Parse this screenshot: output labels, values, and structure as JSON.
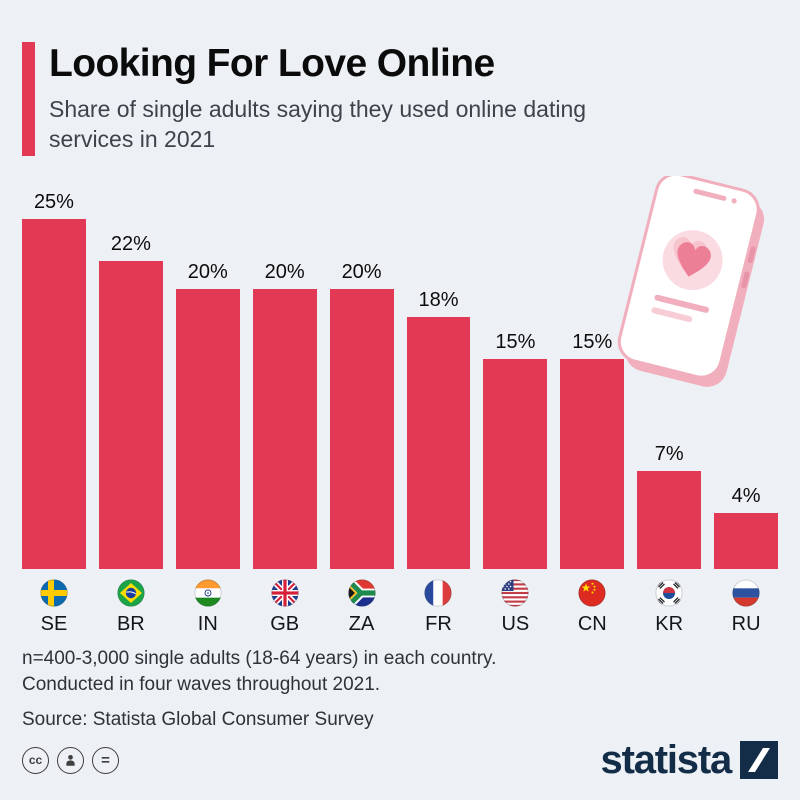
{
  "page": {
    "background": "#edf1f5"
  },
  "header": {
    "title": "Looking For Love Online",
    "subtitle": "Share of single adults saying they used online dating services in 2021",
    "accent_color": "#e23a55"
  },
  "chart_data": {
    "type": "bar",
    "title": "Looking For Love Online",
    "subtitle": "Share of single adults saying they used online dating services in 2021",
    "unit": "%",
    "categories": [
      "SE",
      "BR",
      "IN",
      "GB",
      "ZA",
      "FR",
      "US",
      "CN",
      "KR",
      "RU"
    ],
    "values": [
      25,
      22,
      20,
      20,
      20,
      18,
      15,
      15,
      7,
      4
    ],
    "value_labels": [
      "25%",
      "22%",
      "20%",
      "20%",
      "20%",
      "18%",
      "15%",
      "15%",
      "7%",
      "4%"
    ],
    "ylim": [
      0,
      25
    ],
    "grid": false,
    "legend": "none",
    "bar_color": "#e23a55",
    "flag_icons": [
      "flag-sweden-icon",
      "flag-brazil-icon",
      "flag-india-icon",
      "flag-uk-icon",
      "flag-south-africa-icon",
      "flag-france-icon",
      "flag-usa-icon",
      "flag-china-icon",
      "flag-south-korea-icon",
      "flag-russia-icon"
    ]
  },
  "illustration": {
    "name": "phone-with-heart-illustration",
    "color": "#f1aebc"
  },
  "footer": {
    "note_line1": "n=400-3,000 single adults (18-64 years) in each country.",
    "note_line2": "Conducted in four waves throughout 2021.",
    "source": "Source: Statista Global Consumer Survey"
  },
  "branding": {
    "logo_text": "statista",
    "logo_color": "#132c47",
    "license_icons": [
      "cc-icon",
      "attribution-icon",
      "equals-icon"
    ]
  }
}
